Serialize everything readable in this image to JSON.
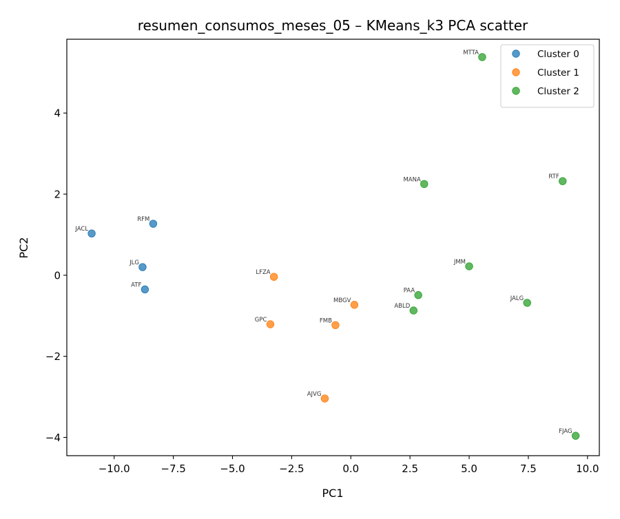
{
  "chart_data": {
    "type": "scatter",
    "title": "resumen_consumos_meses_05 – KMeans_k3 PCA scatter",
    "xlabel": "PC1",
    "ylabel": "PC2",
    "xlim": [
      -12.0,
      10.5
    ],
    "ylim": [
      -4.45,
      5.82
    ],
    "xticks": [
      {
        "value": -10.0,
        "label": "−10.0"
      },
      {
        "value": -7.5,
        "label": "−7.5"
      },
      {
        "value": -5.0,
        "label": "−5.0"
      },
      {
        "value": -2.5,
        "label": "−2.5"
      },
      {
        "value": 0.0,
        "label": "0.0"
      },
      {
        "value": 2.5,
        "label": "2.5"
      },
      {
        "value": 5.0,
        "label": "5.0"
      },
      {
        "value": 7.5,
        "label": "7.5"
      },
      {
        "value": 10.0,
        "label": "10.0"
      }
    ],
    "yticks": [
      {
        "value": -4,
        "label": "−4"
      },
      {
        "value": -2,
        "label": "−2"
      },
      {
        "value": 0,
        "label": "0"
      },
      {
        "value": 2,
        "label": "2"
      },
      {
        "value": 4,
        "label": "4"
      }
    ],
    "grid": false,
    "legend_position": "top-right",
    "series": [
      {
        "name": "Cluster 0",
        "color": "#1f77b4",
        "points": [
          {
            "label": "JACL",
            "x": -10.95,
            "y": 1.03
          },
          {
            "label": "RFM",
            "x": -8.35,
            "y": 1.27
          },
          {
            "label": "JLG",
            "x": -8.8,
            "y": 0.2
          },
          {
            "label": "ATF",
            "x": -8.7,
            "y": -0.35
          }
        ]
      },
      {
        "name": "Cluster 1",
        "color": "#ff7f0e",
        "points": [
          {
            "label": "LFZA",
            "x": -3.25,
            "y": -0.04
          },
          {
            "label": "MBGV",
            "x": 0.15,
            "y": -0.73
          },
          {
            "label": "GPC",
            "x": -3.4,
            "y": -1.21
          },
          {
            "label": "FMB",
            "x": -0.65,
            "y": -1.23
          },
          {
            "label": "AJVG",
            "x": -1.1,
            "y": -3.04
          }
        ]
      },
      {
        "name": "Cluster 2",
        "color": "#2ca02c",
        "points": [
          {
            "label": "MTTA",
            "x": 5.55,
            "y": 5.38
          },
          {
            "label": "MANA",
            "x": 3.1,
            "y": 2.25
          },
          {
            "label": "RTF",
            "x": 8.95,
            "y": 2.32
          },
          {
            "label": "JMM",
            "x": 5.0,
            "y": 0.22
          },
          {
            "label": "PAA",
            "x": 2.85,
            "y": -0.49
          },
          {
            "label": "ABLD",
            "x": 2.65,
            "y": -0.87
          },
          {
            "label": "JALG",
            "x": 7.45,
            "y": -0.68
          },
          {
            "label": "FJAG",
            "x": 9.5,
            "y": -3.96
          }
        ]
      }
    ]
  }
}
